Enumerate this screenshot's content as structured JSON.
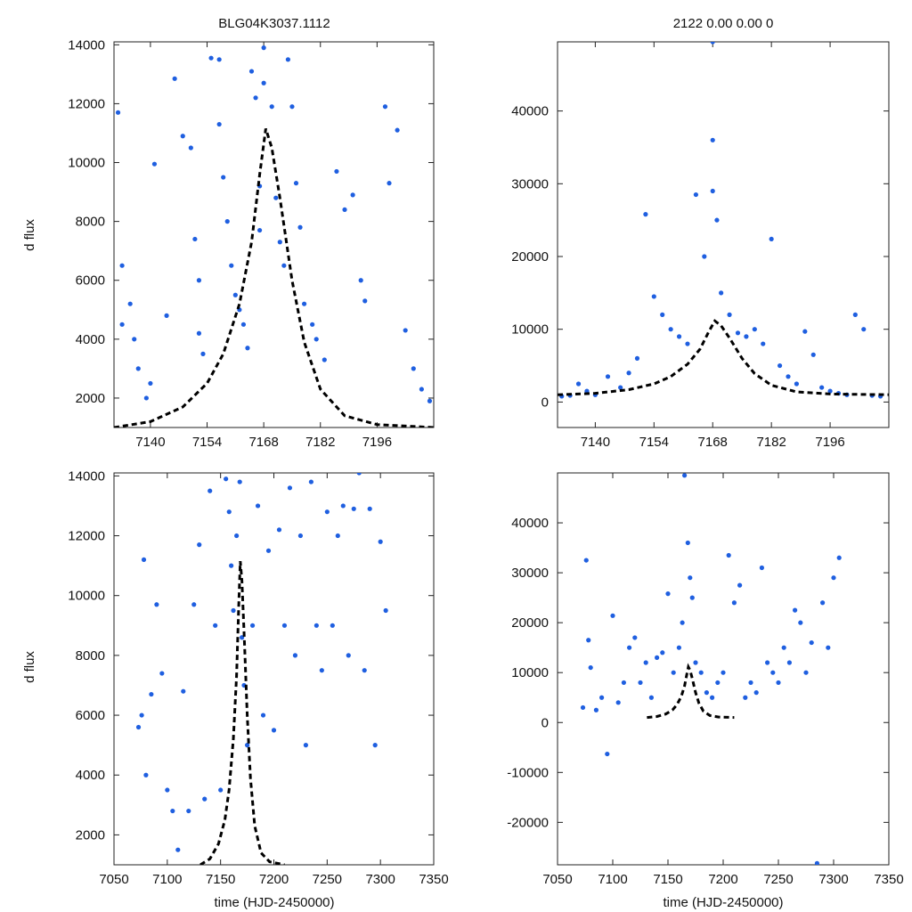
{
  "figure": {
    "title_left": "BLG04K3037.1112",
    "title_right": "2122  0.00  0.00  0"
  },
  "colors": {
    "points": "#1f5fe0",
    "model": "#000000",
    "frame": "#222222"
  },
  "chart_data": [
    {
      "id": "top-left",
      "type": "scatter",
      "title": "BLG04K3037.1112",
      "xlabel": "",
      "ylabel": "d flux",
      "xlim": [
        7131,
        7210
      ],
      "ylim": [
        1000,
        14100
      ],
      "xticks": [
        7140,
        7154,
        7168,
        7182,
        7196
      ],
      "xticklabels": [
        "7140",
        "7154",
        "7168",
        "7182",
        "7196"
      ],
      "yticks": [
        2000,
        4000,
        6000,
        8000,
        10000,
        12000,
        14000
      ],
      "yticklabels": [
        "2000",
        "4000",
        "6000",
        "8000",
        "10000",
        "12000",
        "14000"
      ],
      "series": [
        {
          "name": "data",
          "x": [
            7132,
            7133,
            7133,
            7135,
            7136,
            7137,
            7139,
            7140,
            7141,
            7144,
            7146,
            7148,
            7150,
            7151,
            7152,
            7152,
            7153,
            7155,
            7157,
            7157,
            7158,
            7159,
            7160,
            7161,
            7162,
            7163,
            7164,
            7165,
            7166,
            7167,
            7167,
            7168,
            7168,
            7170,
            7171,
            7172,
            7173,
            7174,
            7175,
            7176,
            7177,
            7178,
            7180,
            7181,
            7183,
            7186,
            7188,
            7190,
            7192,
            7193,
            7198,
            7199,
            7201,
            7203,
            7205,
            7207,
            7209
          ],
          "y": [
            11700,
            6500,
            4500,
            5200,
            4000,
            3000,
            2000,
            2500,
            9950,
            4800,
            12850,
            10900,
            10500,
            7400,
            6000,
            4200,
            3500,
            13550,
            13500,
            11300,
            9500,
            8000,
            6500,
            5500,
            5000,
            4500,
            3700,
            13100,
            12200,
            9200,
            7700,
            13900,
            12700,
            11900,
            8800,
            7300,
            6500,
            13500,
            11900,
            9300,
            7800,
            5200,
            4500,
            4000,
            3300,
            9700,
            8400,
            8900,
            6000,
            5300,
            11900,
            9300,
            11100,
            4300,
            3000,
            2300,
            1900
          ]
        },
        {
          "name": "model",
          "x": [
            7131,
            7140,
            7148,
            7154,
            7158,
            7162,
            7165,
            7167,
            7168.5,
            7170,
            7172,
            7175,
            7178,
            7182,
            7188,
            7196,
            7210
          ],
          "y": [
            1000,
            1200,
            1700,
            2500,
            3500,
            5200,
            7300,
            9600,
            11150,
            10500,
            8800,
            6000,
            3900,
            2300,
            1400,
            1100,
            1000
          ]
        }
      ]
    },
    {
      "id": "top-right",
      "type": "scatter",
      "title": "2122  0.00  0.00  0",
      "xlabel": "",
      "ylabel": "",
      "xlim": [
        7131,
        7210
      ],
      "ylim": [
        -3500,
        49500
      ],
      "xticks": [
        7140,
        7154,
        7168,
        7182,
        7196
      ],
      "xticklabels": [
        "7140",
        "7154",
        "7168",
        "7182",
        "7196"
      ],
      "yticks": [
        0,
        10000,
        20000,
        30000,
        40000
      ],
      "yticklabels": [
        "0",
        "10000",
        "20000",
        "30000",
        "40000"
      ],
      "series": [
        {
          "name": "data",
          "x": [
            7132,
            7134,
            7136,
            7138,
            7140,
            7143,
            7146,
            7148,
            7150,
            7152,
            7154,
            7156,
            7158,
            7160,
            7162,
            7164,
            7166,
            7168,
            7168,
            7168,
            7169,
            7170,
            7172,
            7174,
            7176,
            7178,
            7180,
            7182,
            7184,
            7186,
            7188,
            7190,
            7192,
            7194,
            7196,
            7198,
            7200,
            7202,
            7204,
            7206,
            7208
          ],
          "y": [
            800,
            900,
            2500,
            1500,
            1000,
            3500,
            2000,
            4000,
            6000,
            25800,
            14500,
            12000,
            10000,
            9000,
            8000,
            28500,
            20000,
            49500,
            36000,
            29000,
            25000,
            15000,
            12000,
            9500,
            9000,
            10000,
            8000,
            22400,
            5000,
            3500,
            2500,
            9700,
            6500,
            2000,
            1500,
            1200,
            1000,
            12000,
            10000,
            900,
            800
          ]
        },
        {
          "name": "model",
          "x": [
            7131,
            7140,
            7148,
            7154,
            7158,
            7162,
            7165,
            7167,
            7168.5,
            7170,
            7172,
            7175,
            7178,
            7182,
            7188,
            7196,
            7210
          ],
          "y": [
            1000,
            1200,
            1700,
            2500,
            3500,
            5200,
            7300,
            9600,
            11150,
            10500,
            8800,
            6000,
            3900,
            2300,
            1400,
            1100,
            1000
          ]
        }
      ]
    },
    {
      "id": "bottom-left",
      "type": "scatter",
      "title": "",
      "xlabel": "time (HJD-2450000)",
      "ylabel": "d flux",
      "xlim": [
        7050,
        7350
      ],
      "ylim": [
        1000,
        14100
      ],
      "xticks": [
        7050,
        7100,
        7150,
        7200,
        7250,
        7300,
        7350
      ],
      "xticklabels": [
        "7050",
        "7100",
        "7150",
        "7200",
        "7250",
        "7300",
        "7350"
      ],
      "yticks": [
        2000,
        4000,
        6000,
        8000,
        10000,
        12000,
        14000
      ],
      "yticklabels": [
        "2000",
        "4000",
        "6000",
        "8000",
        "10000",
        "12000",
        "14000"
      ],
      "series": [
        {
          "name": "data",
          "x": [
            7073,
            7076,
            7078,
            7080,
            7085,
            7090,
            7095,
            7100,
            7105,
            7110,
            7115,
            7120,
            7125,
            7130,
            7135,
            7140,
            7145,
            7150,
            7155,
            7158,
            7160,
            7162,
            7165,
            7168,
            7170,
            7172,
            7175,
            7180,
            7185,
            7190,
            7195,
            7200,
            7205,
            7210,
            7215,
            7220,
            7225,
            7230,
            7235,
            7240,
            7245,
            7250,
            7255,
            7260,
            7265,
            7270,
            7275,
            7280,
            7285,
            7290,
            7295,
            7300,
            7305
          ],
          "y": [
            5600,
            6000,
            11200,
            4000,
            6700,
            9700,
            7400,
            3500,
            2800,
            1500,
            6800,
            2800,
            9700,
            11700,
            3200,
            13500,
            9000,
            3500,
            13900,
            12800,
            11000,
            9500,
            12000,
            13800,
            8600,
            7000,
            5000,
            9000,
            13000,
            6000,
            11500,
            5500,
            12200,
            9000,
            13600,
            8000,
            12000,
            5000,
            13800,
            9000,
            7500,
            12800,
            9000,
            12000,
            13000,
            8000,
            12900,
            14100,
            7500,
            12900,
            5000,
            11800,
            9500
          ]
        },
        {
          "name": "model",
          "x": [
            7131,
            7140,
            7148,
            7154,
            7158,
            7162,
            7165,
            7167,
            7168.5,
            7170,
            7172,
            7175,
            7178,
            7182,
            7188,
            7196,
            7210
          ],
          "y": [
            1000,
            1200,
            1700,
            2500,
            3500,
            5200,
            7300,
            9600,
            11150,
            10500,
            8800,
            6000,
            3900,
            2300,
            1400,
            1100,
            1000
          ]
        }
      ]
    },
    {
      "id": "bottom-right",
      "type": "scatter",
      "title": "",
      "xlabel": "time (HJD-2450000)",
      "ylabel": "",
      "xlim": [
        7050,
        7350
      ],
      "ylim": [
        -28500,
        50000
      ],
      "xticks": [
        7050,
        7100,
        7150,
        7200,
        7250,
        7300,
        7350
      ],
      "xticklabels": [
        "7050",
        "7100",
        "7150",
        "7200",
        "7250",
        "7300",
        "7350"
      ],
      "yticks": [
        -20000,
        -10000,
        0,
        10000,
        20000,
        30000,
        40000
      ],
      "yticklabels": [
        "-20000",
        "-10000",
        "0",
        "10000",
        "20000",
        "30000",
        "40000"
      ],
      "series": [
        {
          "name": "data",
          "x": [
            7073,
            7076,
            7078,
            7080,
            7085,
            7090,
            7095,
            7100,
            7105,
            7110,
            7115,
            7120,
            7125,
            7130,
            7135,
            7140,
            7145,
            7150,
            7155,
            7160,
            7163,
            7165,
            7168,
            7170,
            7172,
            7175,
            7180,
            7185,
            7190,
            7195,
            7200,
            7205,
            7210,
            7215,
            7220,
            7225,
            7230,
            7235,
            7240,
            7245,
            7250,
            7255,
            7260,
            7265,
            7270,
            7275,
            7280,
            7285,
            7290,
            7295,
            7300,
            7305
          ],
          "y": [
            3000,
            32500,
            16500,
            11000,
            2500,
            5000,
            -6300,
            21400,
            4000,
            8000,
            15000,
            17000,
            8000,
            12000,
            5000,
            13000,
            14000,
            25800,
            10000,
            15000,
            20000,
            49500,
            36000,
            29000,
            25000,
            12000,
            10000,
            6000,
            5000,
            8000,
            10000,
            33500,
            24000,
            27500,
            5000,
            8000,
            6000,
            31000,
            12000,
            10000,
            8000,
            15000,
            12000,
            22500,
            20000,
            10000,
            16000,
            -28200,
            24000,
            15000,
            29000,
            33000
          ]
        },
        {
          "name": "model",
          "x": [
            7131,
            7140,
            7148,
            7154,
            7158,
            7162,
            7165,
            7167,
            7168.5,
            7170,
            7172,
            7175,
            7178,
            7182,
            7188,
            7196,
            7210
          ],
          "y": [
            1000,
            1200,
            1700,
            2500,
            3500,
            5200,
            7300,
            9600,
            11150,
            10500,
            8800,
            6000,
            3900,
            2300,
            1400,
            1100,
            1000
          ]
        }
      ]
    }
  ]
}
